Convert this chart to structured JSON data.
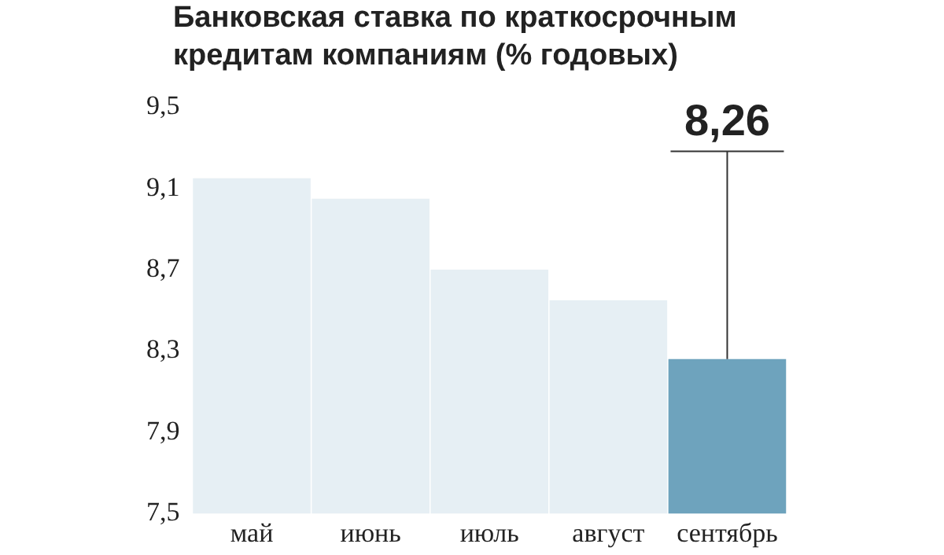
{
  "chart_data": {
    "type": "bar",
    "title": "Банковская ставка по краткосрочным кредитам компаниям (% годовых)",
    "categories": [
      "май",
      "июнь",
      "июль",
      "август",
      "сентябрь"
    ],
    "values": [
      9.15,
      9.05,
      8.7,
      8.55,
      8.26
    ],
    "colors": [
      "#e6eff4",
      "#e6eff4",
      "#e6eff4",
      "#e6eff4",
      "#6ea3bd"
    ],
    "value_labels": [
      null,
      null,
      null,
      null,
      "8,26"
    ],
    "ylim": [
      7.5,
      9.5
    ],
    "yticks": [
      {
        "value": 7.5,
        "label": "7,5"
      },
      {
        "value": 7.9,
        "label": "7,9"
      },
      {
        "value": 8.3,
        "label": "8,3"
      },
      {
        "value": 8.7,
        "label": "8,7"
      },
      {
        "value": 9.1,
        "label": "9,1"
      },
      {
        "value": 9.5,
        "label": "9,5"
      }
    ],
    "grid": false,
    "legend": false
  }
}
